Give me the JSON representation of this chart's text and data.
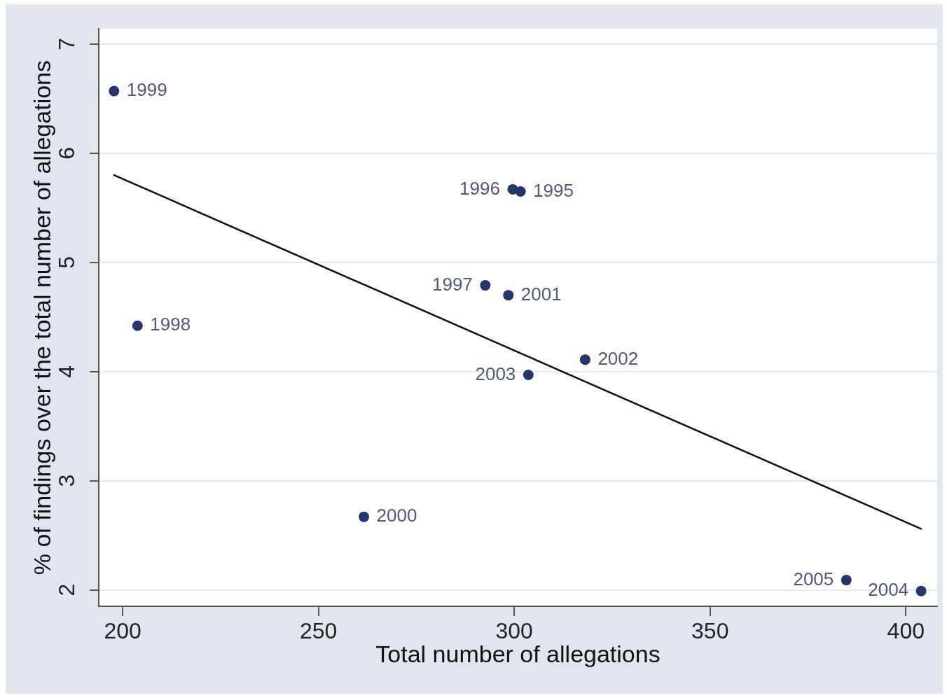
{
  "chart_data": {
    "type": "scatter",
    "xlabel": "Total number of allegations",
    "ylabel": "% of findings over the total number of allegations",
    "xlim": [
      193.9,
      408
    ],
    "ylim": [
      1.85,
      7.14
    ],
    "xticks": [
      200,
      250,
      300,
      350,
      400
    ],
    "yticks": [
      2,
      3,
      4,
      5,
      6,
      7
    ],
    "grid": "y",
    "marker": "circle",
    "series": [
      {
        "color": "#24366b",
        "x": [
          301.6,
          299.6,
          292.6,
          203.8,
          197.8,
          261.6,
          298.5,
          318.1,
          303.6,
          403.9,
          384.8
        ],
        "values": [
          5.65,
          5.67,
          4.79,
          4.42,
          6.57,
          2.67,
          4.7,
          4.11,
          3.97,
          1.99,
          2.09
        ]
      },
      {
        "type": "line",
        "marker": "none",
        "color": "#111111",
        "x": [
          197.8,
          403.9
        ],
        "values": [
          5.8,
          2.56
        ]
      }
    ],
    "annotations": [
      {
        "text": "1995",
        "x": 301.6,
        "y": 5.65
      },
      {
        "text": "1996",
        "x": 299.6,
        "y": 5.67
      },
      {
        "text": "1997",
        "x": 292.6,
        "y": 4.79
      },
      {
        "text": "1998",
        "x": 203.8,
        "y": 4.42
      },
      {
        "text": "1999",
        "x": 197.8,
        "y": 6.57
      },
      {
        "text": "2000",
        "x": 261.6,
        "y": 2.67
      },
      {
        "text": "2001",
        "x": 298.5,
        "y": 4.7
      },
      {
        "text": "2002",
        "x": 318.1,
        "y": 4.11
      },
      {
        "text": "2003",
        "x": 303.6,
        "y": 3.97
      },
      {
        "text": "2004",
        "x": 403.9,
        "y": 1.99
      },
      {
        "text": "2005",
        "x": 384.8,
        "y": 2.09
      }
    ]
  }
}
